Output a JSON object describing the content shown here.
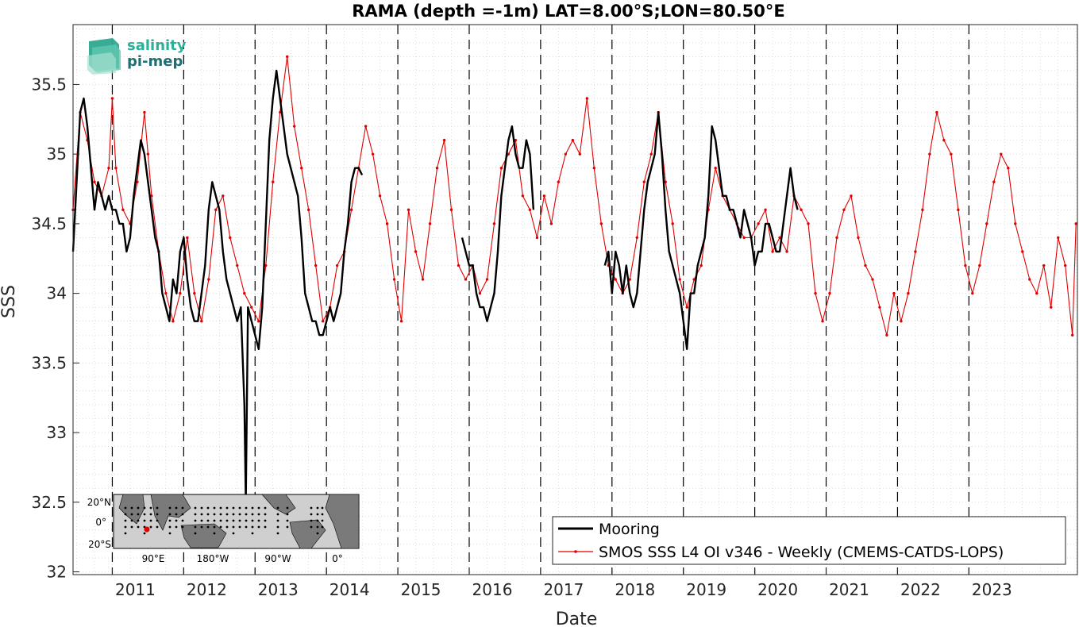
{
  "chart_data": {
    "type": "line",
    "title": "RAMA (depth =-1m) LAT=8.00°S;LON=80.50°E",
    "xlabel": "Date",
    "ylabel": "SSS",
    "xlim": [
      2010.45,
      2024.52
    ],
    "ylim": [
      31.98,
      35.93
    ],
    "x_ticks": [
      2011,
      2012,
      2013,
      2014,
      2015,
      2016,
      2017,
      2018,
      2019,
      2020,
      2021,
      2022,
      2023
    ],
    "x_tick_labels": [
      "2011",
      "2012",
      "2013",
      "2014",
      "2015",
      "2016",
      "2017",
      "2018",
      "2019",
      "2020",
      "2021",
      "2022",
      "2023"
    ],
    "y_ticks": [
      32,
      32.5,
      33,
      33.5,
      34,
      34.5,
      35,
      35.5
    ],
    "y_tick_labels": [
      "32",
      "32.5",
      "33",
      "33.5",
      "34",
      "34.5",
      "35",
      "35.5"
    ],
    "grid": "dotted minor grid",
    "year_markers": "dashed vertical lines at each year start",
    "legend_position": "bottom-right",
    "series": [
      {
        "name": "Mooring",
        "color": "#000000",
        "style": "thick line",
        "segments": [
          {
            "x": [
              2010.45,
              2010.5,
              2010.55,
              2010.6,
              2010.65,
              2010.7,
              2010.75,
              2010.8,
              2010.85,
              2010.9,
              2010.95,
              2011.0,
              2011.05,
              2011.1,
              2011.15,
              2011.2,
              2011.25,
              2011.3,
              2011.35,
              2011.4,
              2011.45,
              2011.5,
              2011.55,
              2011.6,
              2011.65,
              2011.7,
              2011.75,
              2011.8,
              2011.85,
              2011.9,
              2011.95,
              2012.0,
              2012.05,
              2012.1,
              2012.15,
              2012.2,
              2012.25,
              2012.3,
              2012.35,
              2012.4,
              2012.45,
              2012.5,
              2012.55,
              2012.6,
              2012.65,
              2012.7,
              2012.75,
              2012.8,
              2012.85,
              2012.87,
              2012.9,
              2012.95,
              2013.0,
              2013.05,
              2013.1,
              2013.15,
              2013.2,
              2013.25,
              2013.3,
              2013.35,
              2013.4,
              2013.45,
              2013.5,
              2013.55,
              2013.6,
              2013.65,
              2013.7,
              2013.75,
              2013.8,
              2013.85,
              2013.9,
              2013.95,
              2014.0,
              2014.05,
              2014.1,
              2014.15,
              2014.2,
              2014.25,
              2014.3,
              2014.35,
              2014.4,
              2014.45,
              2014.5
            ],
            "y": [
              34.3,
              34.8,
              35.3,
              35.4,
              35.2,
              34.9,
              34.6,
              34.8,
              34.7,
              34.6,
              34.7,
              34.6,
              34.6,
              34.5,
              34.5,
              34.3,
              34.4,
              34.7,
              34.9,
              35.1,
              35.0,
              34.8,
              34.6,
              34.4,
              34.3,
              34.0,
              33.9,
              33.8,
              34.1,
              34.0,
              34.3,
              34.4,
              34.1,
              33.9,
              33.8,
              33.8,
              34.0,
              34.2,
              34.6,
              34.8,
              34.7,
              34.6,
              34.3,
              34.1,
              34.0,
              33.9,
              33.8,
              33.9,
              33.2,
              32.5,
              33.9,
              33.8,
              33.7,
              33.6,
              33.9,
              34.5,
              35.1,
              35.4,
              35.6,
              35.4,
              35.2,
              35.0,
              34.9,
              34.8,
              34.7,
              34.4,
              34.0,
              33.9,
              33.8,
              33.8,
              33.7,
              33.7,
              33.8,
              33.9,
              33.8,
              33.9,
              34.0,
              34.3,
              34.5,
              34.8,
              34.9,
              34.9,
              34.85
            ]
          },
          {
            "x": [
              2015.9,
              2015.95,
              2016.0,
              2016.05,
              2016.1,
              2016.15,
              2016.2,
              2016.25,
              2016.3,
              2016.35,
              2016.4,
              2016.45,
              2016.5,
              2016.55,
              2016.6,
              2016.65,
              2016.7,
              2016.75,
              2016.8,
              2016.85,
              2016.9
            ],
            "y": [
              34.4,
              34.3,
              34.2,
              34.2,
              34.0,
              33.9,
              33.9,
              33.8,
              33.9,
              34.0,
              34.3,
              34.7,
              34.9,
              35.1,
              35.2,
              35.0,
              34.9,
              34.9,
              35.1,
              35.0,
              34.6
            ]
          },
          {
            "x": [
              2017.9,
              2017.95,
              2018.0,
              2018.05,
              2018.1,
              2018.15,
              2018.2,
              2018.25,
              2018.3,
              2018.35,
              2018.4,
              2018.45,
              2018.5,
              2018.55,
              2018.6,
              2018.65,
              2018.7,
              2018.75,
              2018.8,
              2018.85,
              2018.9,
              2018.95,
              2019.0,
              2019.05,
              2019.1,
              2019.15,
              2019.2,
              2019.25,
              2019.3,
              2019.35,
              2019.4,
              2019.45,
              2019.5,
              2019.55,
              2019.6,
              2019.65,
              2019.7,
              2019.75,
              2019.8,
              2019.85,
              2019.9,
              2019.95,
              2020.0,
              2020.05,
              2020.1,
              2020.15,
              2020.2,
              2020.25,
              2020.3,
              2020.35,
              2020.4,
              2020.45,
              2020.5,
              2020.55,
              2020.6
            ],
            "y": [
              34.2,
              34.3,
              34.0,
              34.3,
              34.2,
              34.0,
              34.2,
              34.0,
              33.9,
              34.0,
              34.3,
              34.6,
              34.8,
              34.9,
              35.0,
              35.3,
              35.0,
              34.6,
              34.3,
              34.2,
              34.1,
              34.0,
              33.8,
              33.6,
              34.0,
              34.0,
              34.2,
              34.3,
              34.4,
              34.7,
              35.2,
              35.1,
              34.9,
              34.7,
              34.7,
              34.6,
              34.6,
              34.5,
              34.4,
              34.6,
              34.5,
              34.4,
              34.2,
              34.3,
              34.3,
              34.5,
              34.5,
              34.4,
              34.3,
              34.3,
              34.5,
              34.7,
              34.9,
              34.7,
              34.6
            ]
          }
        ]
      },
      {
        "name": "SMOS SSS L4 OI v346 - Weekly (CMEMS-CATDS-LOPS)",
        "color": "#e00000",
        "style": "thin line with dot markers",
        "segments": [
          {
            "x": [
              2010.45,
              2010.55,
              2010.65,
              2010.75,
              2010.85,
              2010.95,
              2011.0,
              2011.05,
              2011.15,
              2011.25,
              2011.35,
              2011.45,
              2011.5,
              2011.55,
              2011.65,
              2011.75,
              2011.85,
              2011.95,
              2012.05,
              2012.15,
              2012.25,
              2012.35,
              2012.45,
              2012.55,
              2012.65,
              2012.75,
              2012.85,
              2012.95,
              2013.05,
              2013.15,
              2013.25,
              2013.35,
              2013.45,
              2013.55,
              2013.65,
              2013.75,
              2013.85,
              2013.95,
              2014.05,
              2014.15,
              2014.25,
              2014.35,
              2014.45,
              2014.55,
              2014.65,
              2014.75,
              2014.85,
              2014.95,
              2015.05,
              2015.15,
              2015.25,
              2015.35,
              2015.45,
              2015.55,
              2015.65,
              2015.75,
              2015.85,
              2015.95,
              2016.05,
              2016.15,
              2016.25,
              2016.35,
              2016.45,
              2016.55,
              2016.65,
              2016.75,
              2016.85,
              2016.95,
              2017.05,
              2017.15,
              2017.25,
              2017.35,
              2017.45,
              2017.55,
              2017.65,
              2017.75,
              2017.85,
              2017.95,
              2018.05,
              2018.15,
              2018.25,
              2018.35,
              2018.45,
              2018.55,
              2018.65,
              2018.75,
              2018.85,
              2018.95,
              2019.05,
              2019.15,
              2019.25,
              2019.35,
              2019.45,
              2019.55,
              2019.65,
              2019.75,
              2019.85,
              2019.95,
              2020.05,
              2020.15,
              2020.25,
              2020.35,
              2020.45,
              2020.55,
              2020.65,
              2020.75,
              2020.85,
              2020.95,
              2021.05,
              2021.15,
              2021.25,
              2021.35,
              2021.45,
              2021.55,
              2021.65,
              2021.75,
              2021.85,
              2021.95,
              2022.05,
              2022.15,
              2022.25,
              2022.35,
              2022.45,
              2022.55,
              2022.65,
              2022.75,
              2022.85,
              2022.95,
              2023.05,
              2023.15,
              2023.25,
              2023.35,
              2023.45,
              2023.55,
              2023.65,
              2023.75,
              2023.85,
              2023.95,
              2024.05,
              2024.15,
              2024.25,
              2024.35,
              2024.45,
              2024.5
            ],
            "y": [
              34.6,
              35.3,
              35.1,
              34.8,
              34.7,
              34.9,
              35.4,
              34.9,
              34.6,
              34.5,
              34.8,
              35.3,
              35.0,
              34.7,
              34.3,
              34.0,
              33.8,
              34.0,
              34.4,
              34.0,
              33.8,
              34.1,
              34.6,
              34.7,
              34.4,
              34.2,
              34.0,
              33.9,
              33.8,
              34.2,
              34.8,
              35.3,
              35.7,
              35.2,
              34.9,
              34.6,
              34.2,
              33.8,
              33.9,
              34.2,
              34.3,
              34.6,
              34.9,
              35.2,
              35.0,
              34.7,
              34.5,
              34.1,
              33.8,
              34.6,
              34.3,
              34.1,
              34.5,
              34.9,
              35.1,
              34.6,
              34.2,
              34.1,
              34.2,
              34.0,
              34.1,
              34.5,
              34.9,
              35.0,
              35.1,
              34.7,
              34.6,
              34.4,
              34.7,
              34.5,
              34.8,
              35.0,
              35.1,
              35.0,
              35.4,
              34.9,
              34.5,
              34.2,
              34.1,
              34.0,
              34.1,
              34.4,
              34.8,
              35.0,
              35.3,
              34.8,
              34.5,
              34.1,
              33.9,
              34.1,
              34.2,
              34.6,
              34.9,
              34.7,
              34.6,
              34.5,
              34.4,
              34.4,
              34.5,
              34.6,
              34.3,
              34.4,
              34.3,
              34.7,
              34.6,
              34.5,
              34.0,
              33.8,
              34.0,
              34.4,
              34.6,
              34.7,
              34.4,
              34.2,
              34.1,
              33.9,
              33.7,
              34.0,
              33.8,
              34.0,
              34.3,
              34.6,
              35.0,
              35.3,
              35.1,
              35.0,
              34.6,
              34.2,
              34.0,
              34.2,
              34.5,
              34.8,
              35.0,
              34.9,
              34.5,
              34.3,
              34.1,
              34.0,
              34.2,
              33.9,
              34.4,
              34.2,
              33.7,
              34.5
            ]
          }
        ]
      }
    ]
  },
  "legend": {
    "items": [
      "Mooring",
      "SMOS SSS L4 OI v346 - Weekly (CMEMS-CATDS-LOPS)"
    ]
  },
  "logo": {
    "line1": "salinity",
    "line2": "pi-mep"
  },
  "inset_map": {
    "y_labels": [
      "20°N",
      "0°",
      "20°S"
    ],
    "x_labels": [
      "90°E",
      "180°W",
      "90°W",
      "0°"
    ],
    "marker_color": "#e00000"
  }
}
